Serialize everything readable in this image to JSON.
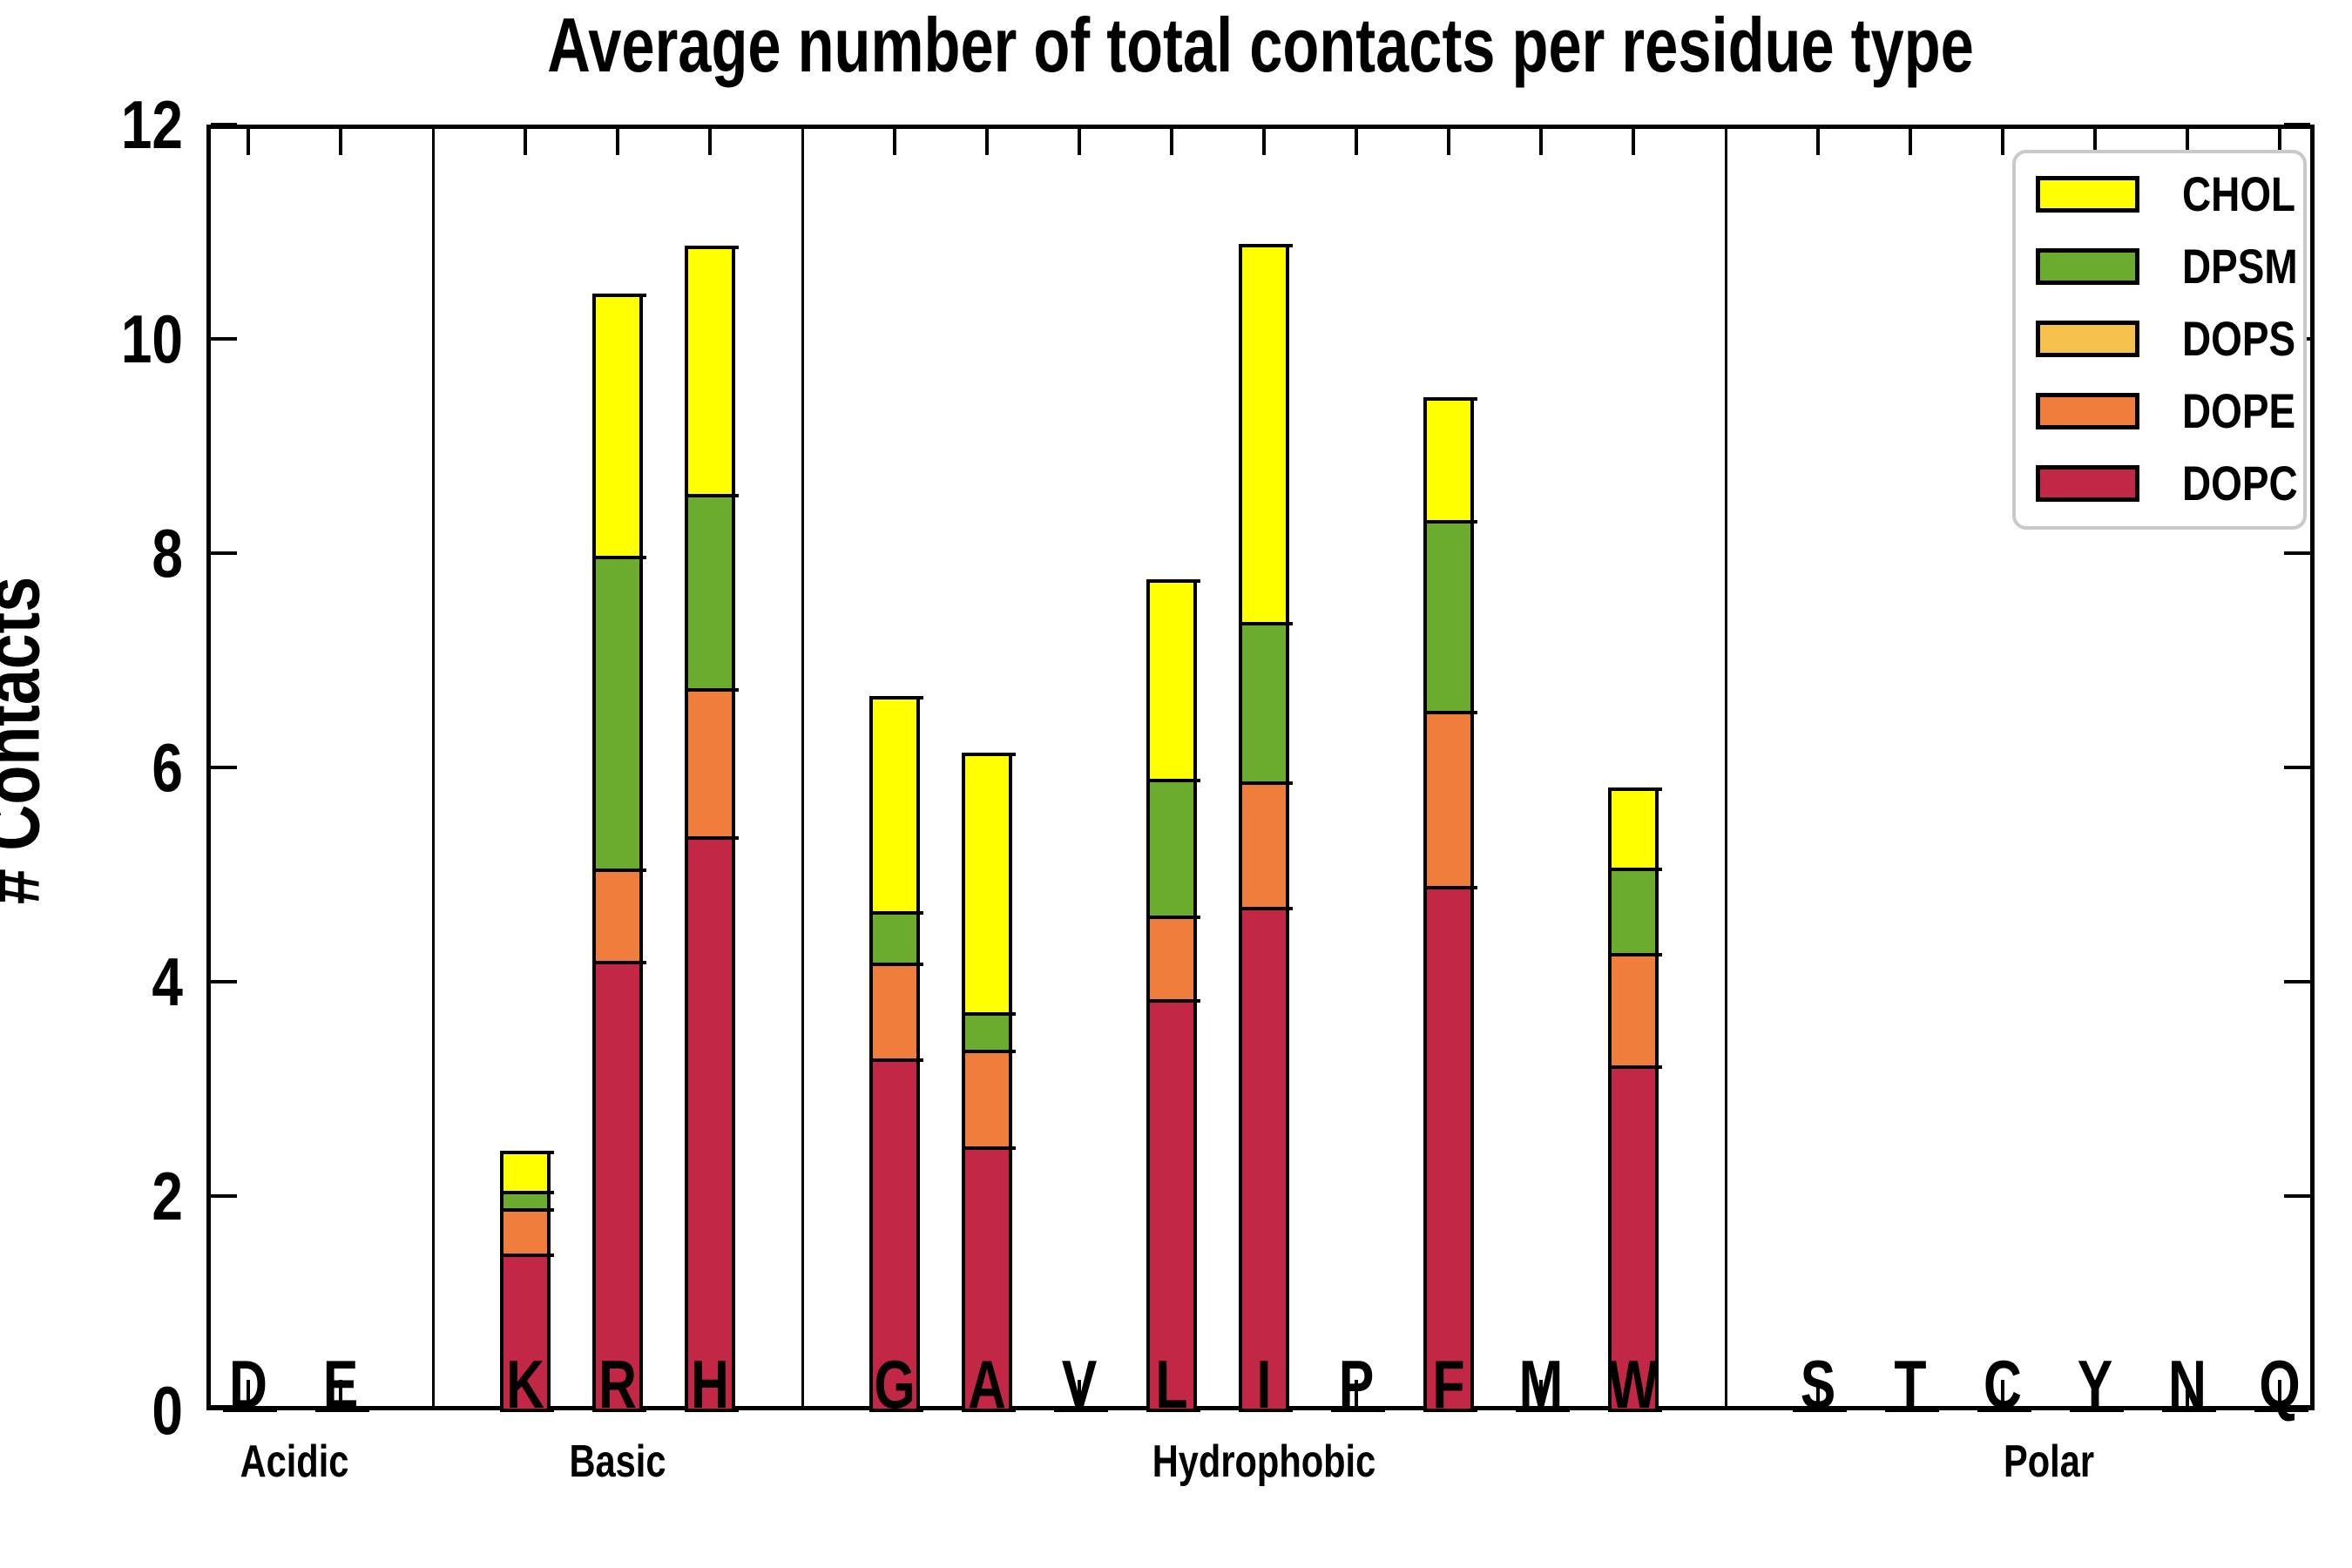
{
  "chart_data": {
    "type": "bar",
    "stacked": true,
    "title": "Average number of total contacts per residue type",
    "ylabel": "# Contacts",
    "ylim": [
      0,
      12
    ],
    "yticks": [
      0,
      2,
      4,
      6,
      8,
      10,
      12
    ],
    "grid": false,
    "legend": {
      "position": "upper-right",
      "entries": [
        {
          "label": "CHOL",
          "color": "#ffff00"
        },
        {
          "label": "DPSM",
          "color": "#6bab2e"
        },
        {
          "label": "DOPS",
          "color": "#f6c04c"
        },
        {
          "label": "DOPE",
          "color": "#ef7e3c"
        },
        {
          "label": "DOPC",
          "color": "#c32746"
        }
      ]
    },
    "groups": [
      {
        "label": "Acidic",
        "members": [
          "D",
          "E"
        ]
      },
      {
        "label": "Basic",
        "members": [
          "K",
          "R",
          "H"
        ]
      },
      {
        "label": "Hydrophobic",
        "members": [
          "G",
          "A",
          "V",
          "L",
          "I",
          "P",
          "F",
          "M",
          "W"
        ]
      },
      {
        "label": "Polar",
        "members": [
          "S",
          "T",
          "C",
          "Y",
          "N",
          "Q"
        ]
      }
    ],
    "categories": [
      "D",
      "E",
      "K",
      "R",
      "H",
      "G",
      "A",
      "V",
      "L",
      "I",
      "P",
      "F",
      "M",
      "W",
      "S",
      "T",
      "C",
      "Y",
      "N",
      "Q"
    ],
    "series": [
      {
        "name": "DOPC",
        "color": "#c32746",
        "values": [
          0,
          0,
          1.45,
          4.18,
          5.34,
          3.27,
          2.45,
          0,
          3.82,
          4.68,
          0,
          4.88,
          0,
          3.2,
          0,
          0,
          0,
          0,
          0,
          0
        ]
      },
      {
        "name": "DOPE",
        "color": "#ef7e3c",
        "values": [
          0,
          0,
          0.42,
          0.86,
          1.38,
          0.89,
          0.9,
          0,
          0.78,
          1.17,
          0,
          1.63,
          0,
          1.05,
          0,
          0,
          0,
          0,
          0,
          0
        ]
      },
      {
        "name": "DOPS",
        "color": "#f6c04c",
        "values": [
          0,
          0,
          0,
          0,
          0,
          0,
          0,
          0,
          0,
          0,
          0,
          0,
          0,
          0,
          0,
          0,
          0,
          0,
          0,
          0
        ]
      },
      {
        "name": "DPSM",
        "color": "#6bab2e",
        "values": [
          0,
          0,
          0.16,
          2.92,
          1.82,
          0.48,
          0.35,
          0,
          1.28,
          1.49,
          0,
          1.78,
          0,
          0.8,
          0,
          0,
          0,
          0,
          0,
          0
        ]
      },
      {
        "name": "CHOL",
        "color": "#ffff00",
        "values": [
          0,
          0,
          0.38,
          2.45,
          2.31,
          2.01,
          2.42,
          0,
          1.86,
          3.53,
          0,
          1.15,
          0,
          0.75,
          0,
          0,
          0,
          0,
          0,
          0
        ]
      }
    ]
  }
}
